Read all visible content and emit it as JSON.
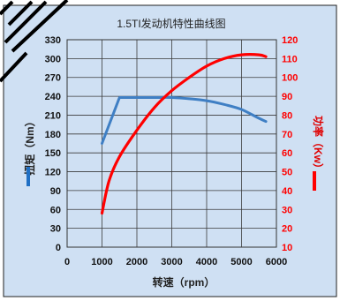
{
  "chart_data": {
    "type": "line",
    "title": "1.5TI发动机特性曲线图",
    "xlabel": "转速（rpm）",
    "ylabel_left": "扭矩（Nm）",
    "ylabel_right": "功率（Kw）",
    "xlim": [
      0,
      6000
    ],
    "ylim_left": [
      0,
      330
    ],
    "ylim_right": [
      10,
      120
    ],
    "x_ticks": [
      "0",
      "1000",
      "2000",
      "3000",
      "4000",
      "5000",
      "6000"
    ],
    "y_left_ticks": [
      "0",
      "30",
      "60",
      "90",
      "120",
      "150",
      "180",
      "210",
      "240",
      "270",
      "300",
      "330"
    ],
    "y_right_ticks": [
      "10",
      "20",
      "30",
      "40",
      "50",
      "60",
      "70",
      "80",
      "90",
      "100",
      "110",
      "120"
    ],
    "grid": true,
    "series": [
      {
        "name": "扭矩",
        "axis": "left",
        "color": "#3f7fc4",
        "x": [
          1000,
          1500,
          2000,
          2500,
          3000,
          3500,
          4000,
          4500,
          5000,
          5500,
          5700
        ],
        "y": [
          165,
          238,
          238,
          238,
          238,
          236,
          233,
          227,
          219,
          205,
          200
        ]
      },
      {
        "name": "功率",
        "axis": "right",
        "color": "#ff0000",
        "x": [
          1000,
          1200,
          1500,
          2000,
          2500,
          3000,
          3500,
          4000,
          4500,
          5000,
          5500,
          5700
        ],
        "y": [
          28,
          45,
          58,
          72,
          84,
          93,
          100,
          106,
          110,
          112,
          112,
          111
        ]
      }
    ]
  }
}
